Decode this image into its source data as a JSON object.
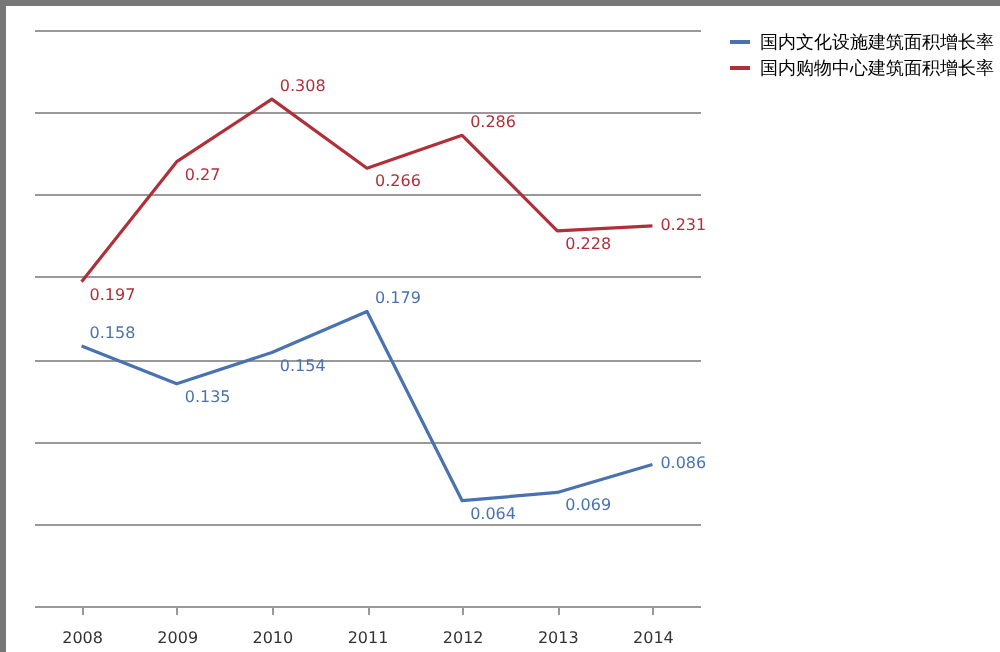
{
  "chart_data": {
    "type": "line",
    "categories": [
      "2008",
      "2009",
      "2010",
      "2011",
      "2012",
      "2013",
      "2014"
    ],
    "series": [
      {
        "name": "国内文化设施建筑面积增长率",
        "color": "#4a72b0",
        "values": [
          0.158,
          0.135,
          0.154,
          0.179,
          0.064,
          0.069,
          0.086
        ]
      },
      {
        "name": "国内购物中心建筑面积增长率",
        "color": "#b0303a",
        "values": [
          0.197,
          0.27,
          0.308,
          0.266,
          0.286,
          0.228,
          0.231
        ]
      }
    ],
    "ylim": [
      0,
      0.35
    ],
    "yticks": [
      {
        "value": 0,
        "label": null
      },
      {
        "value": 0.05,
        "label": null
      },
      {
        "value": 0.1,
        "label": null
      },
      {
        "value": 0.15,
        "label": null
      },
      {
        "value": 0.2,
        "label": null
      },
      {
        "value": 0.25,
        "label": null
      },
      {
        "value": 0.3,
        "label": null
      },
      {
        "value": 0.35,
        "label": null
      }
    ],
    "grid": "y",
    "legend": "right",
    "data_labels": true,
    "tick_labels": "x",
    "marker": "none",
    "line_style": "solid"
  }
}
